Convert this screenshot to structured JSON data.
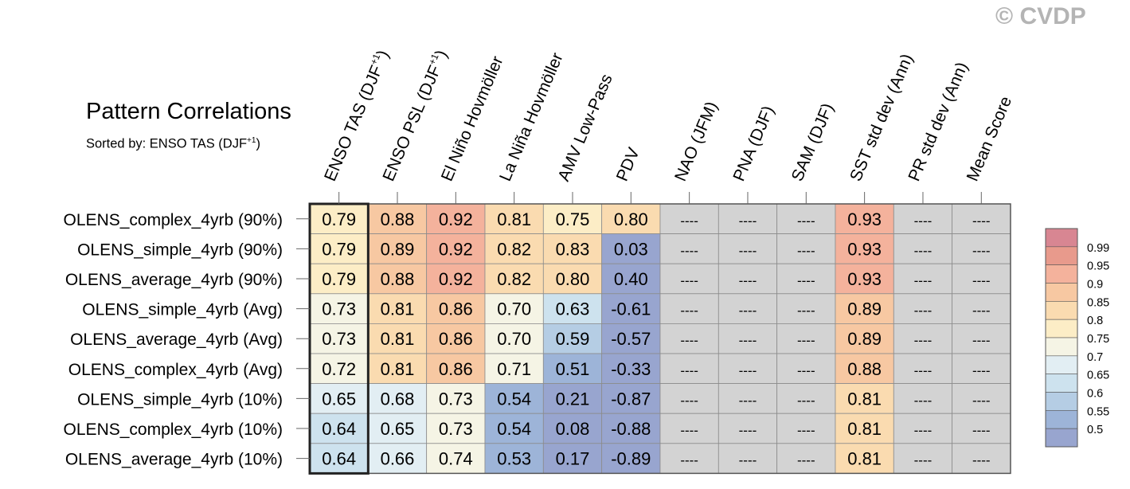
{
  "watermark": "© CVDP",
  "title": "Pattern Correlations",
  "subtitle_prefix": "Sorted by: ENSO TAS (DJF",
  "subtitle_sup": "+1",
  "subtitle_suffix": ")",
  "chart_data": {
    "type": "heatmap",
    "title": "Pattern Correlations",
    "columns": [
      {
        "label": "ENSO TAS (DJF",
        "sup": "+1",
        "suffix": ")"
      },
      {
        "label": "ENSO PSL (DJF",
        "sup": "+1",
        "suffix": ")"
      },
      {
        "label": "El Niño Hovmöller"
      },
      {
        "label": "La Niña Hovmöller"
      },
      {
        "label": "AMV Low-Pass"
      },
      {
        "label": "PDV"
      },
      {
        "label": "NAO (JFM)"
      },
      {
        "label": "PNA (DJF)"
      },
      {
        "label": "SAM (DJF)"
      },
      {
        "label": "SST std dev (Ann)"
      },
      {
        "label": "PR std dev (Ann)"
      },
      {
        "label": "Mean Score"
      }
    ],
    "rows": [
      {
        "name": "OLENS_complex_4yrb (90%)",
        "values": [
          0.79,
          0.88,
          0.92,
          0.81,
          0.75,
          0.8,
          null,
          null,
          null,
          0.93,
          null,
          null
        ]
      },
      {
        "name": "OLENS_simple_4yrb (90%)",
        "values": [
          0.79,
          0.89,
          0.92,
          0.82,
          0.83,
          0.03,
          null,
          null,
          null,
          0.93,
          null,
          null
        ]
      },
      {
        "name": "OLENS_average_4yrb (90%)",
        "values": [
          0.79,
          0.88,
          0.92,
          0.82,
          0.8,
          0.4,
          null,
          null,
          null,
          0.93,
          null,
          null
        ]
      },
      {
        "name": "OLENS_simple_4yrb (Avg)",
        "values": [
          0.73,
          0.81,
          0.86,
          0.7,
          0.63,
          -0.61,
          null,
          null,
          null,
          0.89,
          null,
          null
        ]
      },
      {
        "name": "OLENS_average_4yrb (Avg)",
        "values": [
          0.73,
          0.81,
          0.86,
          0.7,
          0.59,
          -0.57,
          null,
          null,
          null,
          0.89,
          null,
          null
        ]
      },
      {
        "name": "OLENS_complex_4yrb (Avg)",
        "values": [
          0.72,
          0.81,
          0.86,
          0.71,
          0.51,
          -0.33,
          null,
          null,
          null,
          0.88,
          null,
          null
        ]
      },
      {
        "name": "OLENS_simple_4yrb (10%)",
        "values": [
          0.65,
          0.68,
          0.73,
          0.54,
          0.21,
          -0.87,
          null,
          null,
          null,
          0.81,
          null,
          null
        ]
      },
      {
        "name": "OLENS_complex_4yrb (10%)",
        "values": [
          0.64,
          0.65,
          0.73,
          0.54,
          0.08,
          -0.88,
          null,
          null,
          null,
          0.81,
          null,
          null
        ]
      },
      {
        "name": "OLENS_average_4yrb (10%)",
        "values": [
          0.64,
          0.66,
          0.74,
          0.53,
          0.17,
          -0.89,
          null,
          null,
          null,
          0.81,
          null,
          null
        ]
      }
    ],
    "missing_label": "----",
    "missing_color": "#d3d3d3",
    "highlighted_column": 0,
    "colorbar": {
      "levels": [
        "0.99",
        "0.95",
        "0.9",
        "0.85",
        "0.8",
        "0.75",
        "0.7",
        "0.65",
        "0.6",
        "0.55",
        "0.5"
      ],
      "thresholds": [
        0.99,
        0.95,
        0.9,
        0.85,
        0.8,
        0.75,
        0.7,
        0.65,
        0.6,
        0.55,
        0.5
      ],
      "colors": [
        "#d88692",
        "#e89a8c",
        "#f4b29c",
        "#f7c8a2",
        "#fadbb0",
        "#fcedc6",
        "#f5f4e5",
        "#e2eef3",
        "#cde2ee",
        "#b5cde4",
        "#9db4d8",
        "#98a5cf"
      ]
    }
  }
}
